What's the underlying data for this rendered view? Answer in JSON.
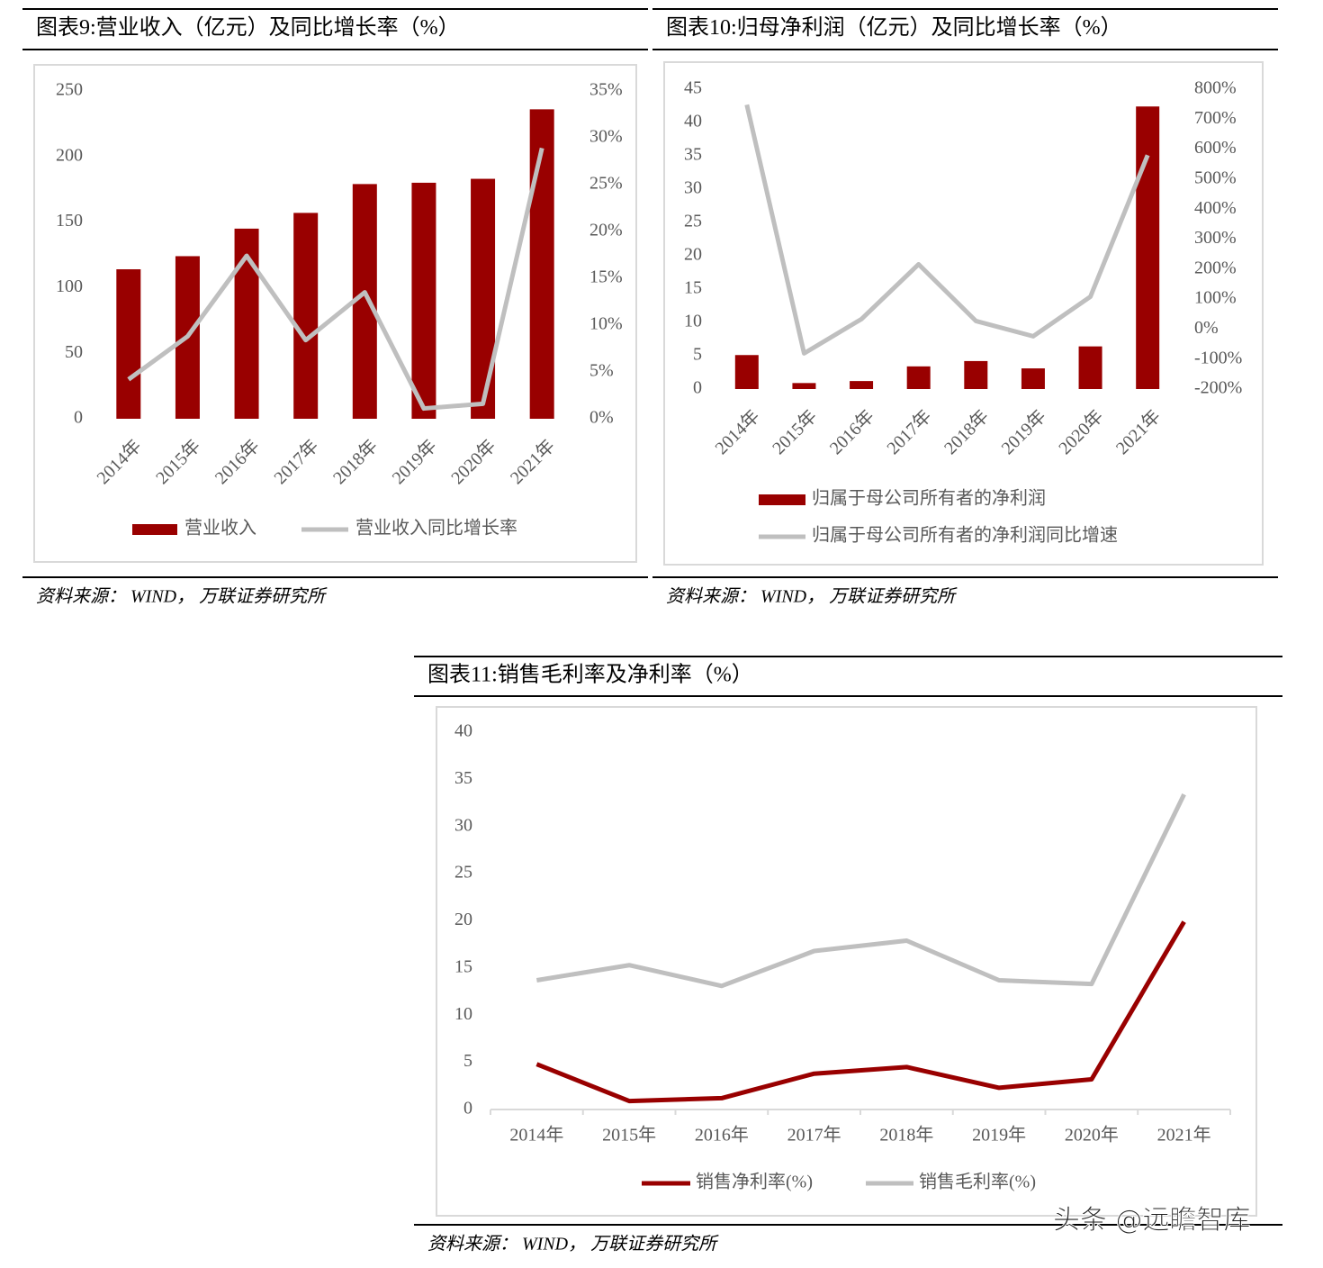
{
  "chart_data": [
    {
      "type": "bar",
      "title": "图表9:营业收入（亿元）及同比增长率（%）",
      "source": "资料来源： WIND， 万联证券研究所",
      "categories": [
        "2014年",
        "2015年",
        "2016年",
        "2017年",
        "2018年",
        "2019年",
        "2020年",
        "2021年"
      ],
      "series": [
        {
          "name": "营业收入",
          "type": "bar",
          "color": "#990000",
          "values": [
            114,
            124,
            145,
            157,
            179,
            180,
            183,
            236
          ]
        },
        {
          "name": "营业收入同比增长率",
          "type": "line",
          "axis": "y2",
          "color": "#bfbfbf",
          "values": [
            4.2,
            8.8,
            17.4,
            8.4,
            13.5,
            1.1,
            1.6,
            28.9
          ]
        }
      ],
      "ylim": [
        0,
        250
      ],
      "yticks": [
        0,
        50,
        100,
        150,
        200,
        250
      ],
      "y2lim": [
        0,
        35
      ],
      "y2ticks": [
        {
          "value": 0,
          "label": "0%"
        },
        {
          "value": 5,
          "label": "5%"
        },
        {
          "value": 10,
          "label": "10%"
        },
        {
          "value": 15,
          "label": "15%"
        },
        {
          "value": 20,
          "label": "20%"
        },
        {
          "value": 25,
          "label": "25%"
        },
        {
          "value": 30,
          "label": "30%"
        },
        {
          "value": 35,
          "label": "35%"
        }
      ]
    },
    {
      "type": "bar",
      "title": "图表10:归母净利润（亿元）及同比增长率（%）",
      "source": "资料来源： WIND， 万联证券研究所",
      "categories": [
        "2014年",
        "2015年",
        "2016年",
        "2017年",
        "2018年",
        "2019年",
        "2020年",
        "2021年"
      ],
      "series": [
        {
          "name": "归属于母公司所有者的净利润",
          "type": "bar",
          "color": "#990000",
          "values": [
            5.1,
            0.9,
            1.2,
            3.4,
            4.2,
            3.1,
            6.4,
            42.4
          ]
        },
        {
          "name": "归属于母公司所有者的净利润同比增速",
          "type": "line",
          "axis": "y2",
          "color": "#bfbfbf",
          "values": [
            748,
            -81,
            33,
            216,
            27,
            -24,
            108,
            580
          ]
        }
      ],
      "ylim": [
        0,
        45
      ],
      "yticks": [
        0,
        5,
        10,
        15,
        20,
        25,
        30,
        35,
        40,
        45
      ],
      "y2lim": [
        -200,
        800
      ],
      "y2ticks": [
        {
          "value": -200,
          "label": "-200%"
        },
        {
          "value": -100,
          "label": "-100%"
        },
        {
          "value": 0,
          "label": "0%"
        },
        {
          "value": 100,
          "label": "100%"
        },
        {
          "value": 200,
          "label": "200%"
        },
        {
          "value": 300,
          "label": "300%"
        },
        {
          "value": 400,
          "label": "400%"
        },
        {
          "value": 500,
          "label": "500%"
        },
        {
          "value": 600,
          "label": "600%"
        },
        {
          "value": 700,
          "label": "700%"
        },
        {
          "value": 800,
          "label": "800%"
        }
      ]
    },
    {
      "type": "line",
      "title": "图表11:销售毛利率及净利率（%）",
      "source": "资料来源： WIND， 万联证券研究所",
      "categories": [
        "2014年",
        "2015年",
        "2016年",
        "2017年",
        "2018年",
        "2019年",
        "2020年",
        "2021年"
      ],
      "series": [
        {
          "name": "销售净利率(%)",
          "type": "line",
          "color": "#990000",
          "values": [
            4.8,
            0.9,
            1.2,
            3.8,
            4.5,
            2.3,
            3.2,
            19.9
          ]
        },
        {
          "name": "销售毛利率(%)",
          "type": "line",
          "color": "#bfbfbf",
          "values": [
            13.7,
            15.3,
            13.1,
            16.8,
            17.9,
            13.7,
            13.3,
            33.4
          ]
        }
      ],
      "ylim": [
        0,
        40
      ],
      "yticks": [
        0,
        5,
        10,
        15,
        20,
        25,
        30,
        35,
        40
      ]
    }
  ],
  "watermark": "头条 @远瞻智库"
}
